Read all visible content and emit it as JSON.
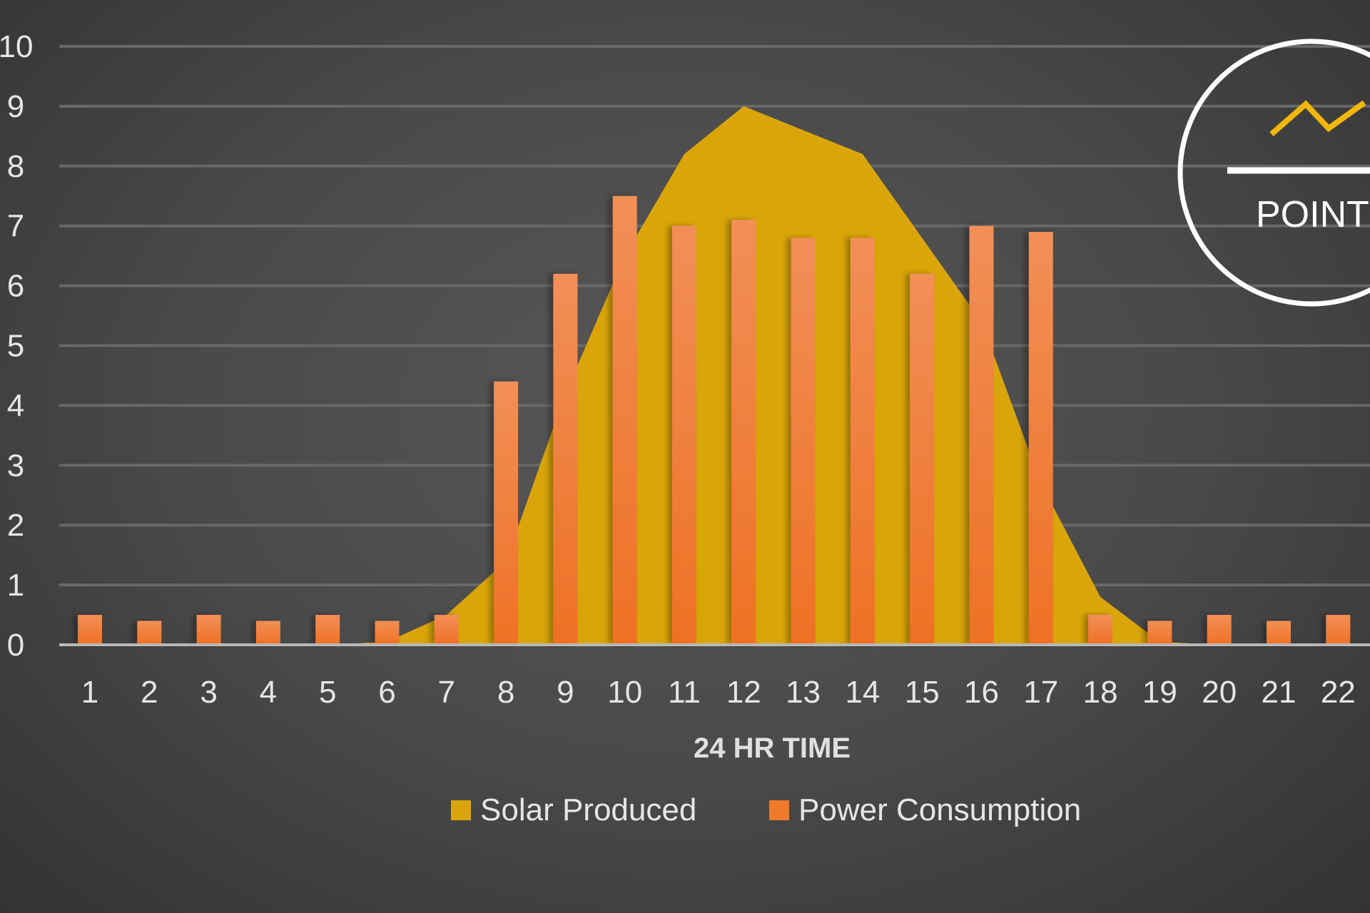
{
  "chart_data": {
    "type": "bar+area",
    "title": "",
    "xlabel": "24 HR TIME",
    "ylabel": "",
    "ylim": [
      0,
      10
    ],
    "yticks": [
      "0",
      "1",
      "2",
      "3",
      "4",
      "5",
      "6",
      "7",
      "8",
      "9",
      "10"
    ],
    "categories": [
      "1",
      "2",
      "3",
      "4",
      "5",
      "6",
      "7",
      "8",
      "9",
      "10",
      "11",
      "12",
      "13",
      "14",
      "15",
      "16",
      "17",
      "18",
      "19",
      "20",
      "21",
      "22"
    ],
    "grid": true,
    "legend_position": "bottom",
    "series": [
      {
        "name": "Solar Produced",
        "type": "area",
        "color": "#DAA508",
        "values": [
          0,
          0,
          0,
          0,
          0,
          0.05,
          0.5,
          1.4,
          4.2,
          6.5,
          8.2,
          9.0,
          8.6,
          8.2,
          6.8,
          5.4,
          2.7,
          0.8,
          0.05,
          0,
          0,
          0
        ]
      },
      {
        "name": "Power Consumption",
        "type": "bar",
        "color": "#F07A2A",
        "values": [
          0.5,
          0.4,
          0.5,
          0.4,
          0.5,
          0.4,
          0.5,
          4.4,
          6.2,
          7.5,
          7.0,
          7.1,
          6.8,
          6.8,
          6.2,
          7.0,
          6.9,
          0.5,
          0.4,
          0.5,
          0.4,
          0.5
        ]
      }
    ]
  },
  "logo": {
    "text": "POINT",
    "icon": "line-chart-zigzag-icon",
    "accent": "#F2B705"
  }
}
